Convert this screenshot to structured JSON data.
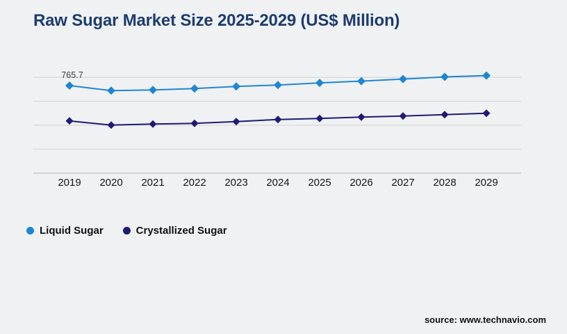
{
  "page": {
    "title": "Raw Sugar Market Size 2025-2029 (US$ Million)",
    "source": "source: www.technavio.com",
    "background_color": "#f0f1f3",
    "title_color": "#1d3c6e"
  },
  "legend": {
    "items": [
      {
        "label": "Liquid Sugar",
        "color": "#1e86d1"
      },
      {
        "label": "Crystallized Sugar",
        "color": "#1d1b73"
      }
    ]
  },
  "chart_data": {
    "type": "line",
    "title": "Raw Sugar Market Size 2025-2029 (US$ Million)",
    "categories": [
      "2019",
      "2020",
      "2021",
      "2022",
      "2023",
      "2024",
      "2025",
      "2026",
      "2027",
      "2028",
      "2029"
    ],
    "series": [
      {
        "name": "Liquid Sugar",
        "color": "#1e86d1",
        "marker": "diamond",
        "values": [
          765.7,
          744.5,
          747.5,
          753.4,
          762.2,
          768.1,
          776.9,
          784.2,
          793.0,
          801.9,
          807.7
        ]
      },
      {
        "name": "Crystallized Sugar",
        "color": "#1d1b73",
        "marker": "diamond",
        "values": [
          618.1,
          600.5,
          604.9,
          607.8,
          615.2,
          624.0,
          628.4,
          634.3,
          638.7,
          644.6,
          650.4
        ]
      }
    ],
    "xlabel": "",
    "ylabel": "",
    "ylim": [
      390,
      815
    ],
    "gridline_values": [
      800,
      700,
      600,
      500,
      400
    ],
    "grid": true,
    "y_axis_visible": false,
    "legend_position": "bottom-left",
    "data_labels": [
      {
        "series": 0,
        "index": 0,
        "text": "765.7"
      }
    ],
    "colors": {
      "gridline": "#d8d9db",
      "axis_line": "#c2c4c7",
      "tick_label": "#161616",
      "data_label": "#3d3d3d"
    }
  }
}
